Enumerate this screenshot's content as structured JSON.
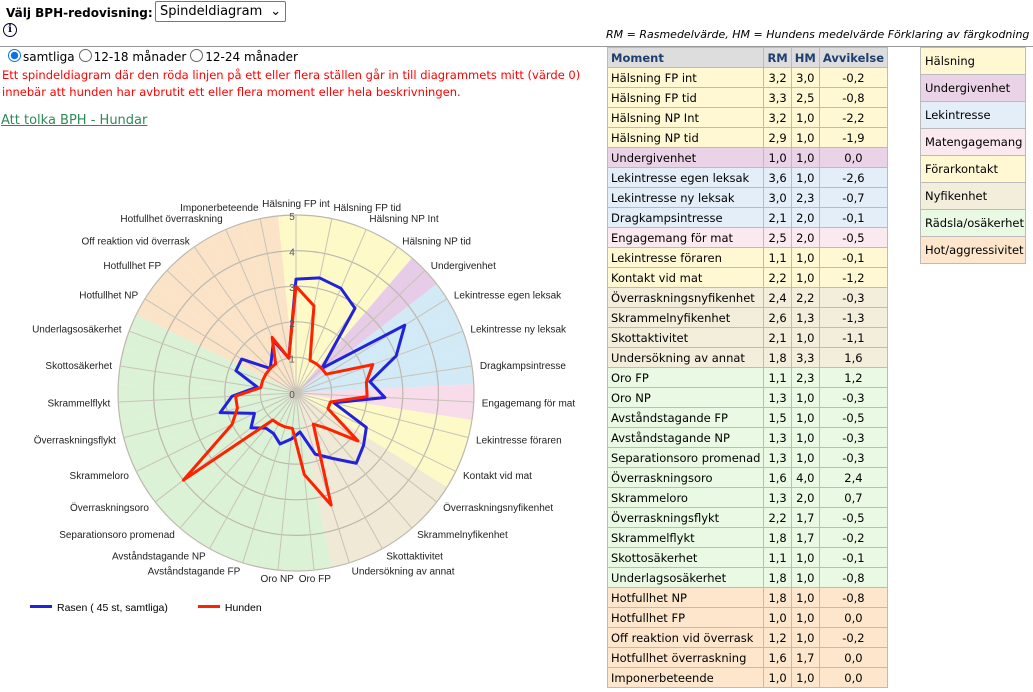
{
  "header": {
    "select_label": "Välj BPH-redovisning:",
    "select_value": "Spindeldiagram",
    "info_icon": "i"
  },
  "filters": [
    {
      "label": "samtliga",
      "checked": true
    },
    {
      "label": "12-18 månader",
      "checked": false
    },
    {
      "label": "12-24 månader",
      "checked": false
    }
  ],
  "warning": "Ett spindeldiagram där den röda linjen på ett eller flera ställen går in till diagrammets mitt (värde 0) innebär att hunden har avbrutit ett eller flera moment eller hela beskrivningen.",
  "link": "Att tolka BPH - Hundar",
  "hint": "RM = Rasmedelvärde,    HM = Hundens medelvärde       Förklaring av färgkodning",
  "table": {
    "headers": [
      "Moment",
      "RM",
      "HM",
      "Avvikelse"
    ],
    "rows": [
      [
        "Hälsning FP int",
        "3,2",
        "3,0",
        "-0,2",
        0
      ],
      [
        "Hälsning FP tid",
        "3,3",
        "2,5",
        "-0,8",
        0
      ],
      [
        "Hälsning NP Int",
        "3,2",
        "1,0",
        "-2,2",
        0
      ],
      [
        "Hälsning NP tid",
        "2,9",
        "1,0",
        "-1,9",
        0
      ],
      [
        "Undergivenhet",
        "1,0",
        "1,0",
        "0,0",
        1
      ],
      [
        "Lekintresse egen leksak",
        "3,6",
        "1,0",
        "-2,6",
        2
      ],
      [
        "Lekintresse ny leksak",
        "3,0",
        "2,3",
        "-0,7",
        2
      ],
      [
        "Dragkampsintresse",
        "2,1",
        "2,0",
        "-0,1",
        2
      ],
      [
        "Engagemang för mat",
        "2,5",
        "2,0",
        "-0,5",
        3
      ],
      [
        "Lekintresse föraren",
        "1,1",
        "1,0",
        "-0,1",
        4
      ],
      [
        "Kontakt vid mat",
        "2,2",
        "1,0",
        "-1,2",
        4
      ],
      [
        "Överraskningsnyfikenhet",
        "2,4",
        "2,2",
        "-0,3",
        5
      ],
      [
        "Skrammelnyfikenhet",
        "2,6",
        "1,3",
        "-1,3",
        5
      ],
      [
        "Skottaktivitet",
        "2,1",
        "1,0",
        "-1,1",
        5
      ],
      [
        "Undersökning av annat",
        "1,8",
        "3,3",
        "1,6",
        5
      ],
      [
        "Oro FP",
        "1,1",
        "2,3",
        "1,2",
        6
      ],
      [
        "Oro NP",
        "1,3",
        "1,0",
        "-0,3",
        6
      ],
      [
        "Avståndstagande FP",
        "1,5",
        "1,0",
        "-0,5",
        6
      ],
      [
        "Avståndstagande NP",
        "1,3",
        "1,0",
        "-0,3",
        6
      ],
      [
        "Separationsoro promenad",
        "1,3",
        "1,0",
        "-0,3",
        6
      ],
      [
        "Överraskningsoro",
        "1,6",
        "4,0",
        "2,4",
        6
      ],
      [
        "Skrammeloro",
        "1,3",
        "2,0",
        "0,7",
        6
      ],
      [
        "Överraskningsflykt",
        "2,2",
        "1,7",
        "-0,5",
        6
      ],
      [
        "Skrammelflykt",
        "1,8",
        "1,7",
        "-0,2",
        6
      ],
      [
        "Skottosäkerhet",
        "1,1",
        "1,0",
        "-0,1",
        6
      ],
      [
        "Underlagsosäkerhet",
        "1,8",
        "1,0",
        "-0,8",
        6
      ],
      [
        "Hotfullhet NP",
        "1,8",
        "1,0",
        "-0,8",
        7
      ],
      [
        "Hotfullhet FP",
        "1,0",
        "1,0",
        "0,0",
        7
      ],
      [
        "Off reaktion vid överrask",
        "1,2",
        "1,0",
        "-0,2",
        7
      ],
      [
        "Hotfullhet överraskning",
        "1,6",
        "1,7",
        "0,0",
        7
      ],
      [
        "Imponerbeteende",
        "1,0",
        "1,0",
        "0,0",
        7
      ]
    ]
  },
  "categories": [
    {
      "label": "Hälsning",
      "row_color": "#fff8d2",
      "chart_color": "#fdfac8"
    },
    {
      "label": "Undergivenhet",
      "row_color": "#ead3e6",
      "chart_color": "#e6cce6"
    },
    {
      "label": "Lekintresse",
      "row_color": "#e3eef8",
      "chart_color": "#d2e9f6"
    },
    {
      "label": "Matengagemang",
      "row_color": "#fbe9f0",
      "chart_color": "#f8dcea"
    },
    {
      "label": "Förarkontakt",
      "row_color": "#fff8d2",
      "chart_color": "#fdfac8"
    },
    {
      "label": "Nyfikenhet",
      "row_color": "#f3eedb",
      "chart_color": "#f0e9d6"
    },
    {
      "label": "Rädsla/osäkerhet",
      "row_color": "#eaf9e3",
      "chart_color": "#dbf2d6"
    },
    {
      "label": "Hot/aggressivitet",
      "row_color": "#fde6cc",
      "chart_color": "#fbe3c8"
    }
  ],
  "chart_data": {
    "type": "radar",
    "categories": [
      "Hälsning FP int",
      "Hälsning FP tid",
      "Hälsning NP Int",
      "Hälsning NP tid",
      "Undergivenhet",
      "Lekintresse egen leksak",
      "Lekintresse ny leksak",
      "Dragkampsintresse",
      "Engagemang för mat",
      "Lekintresse föraren",
      "Kontakt vid mat",
      "Överraskningsnyfikenhet",
      "Skrammelnyfikenhet",
      "Skottaktivitet",
      "Undersökning av annat",
      "Oro FP",
      "Oro NP",
      "Avståndstagande FP",
      "Avståndstagande NP",
      "Separationsoro promenad",
      "Överraskningsoro",
      "Skrammeloro",
      "Överraskningsflykt",
      "Skrammelflykt",
      "Skottosäkerhet",
      "Underlagsosäkerhet",
      "Hotfullhet NP",
      "Hotfullhet FP",
      "Off reaktion vid överrask",
      "Hotfullhet överraskning",
      "Imponerbeteende"
    ],
    "rlim": [
      0,
      5
    ],
    "ticks": [
      "0",
      "1",
      "2",
      "3",
      "4",
      "5"
    ],
    "series": [
      {
        "name": "Rasen ( 45 st, samtliga)",
        "color": "#2222dd",
        "values": [
          3.2,
          3.3,
          3.2,
          2.9,
          1.0,
          3.6,
          3.0,
          2.1,
          2.5,
          1.1,
          2.2,
          2.4,
          2.6,
          2.1,
          1.8,
          1.1,
          1.3,
          1.5,
          1.3,
          1.3,
          1.6,
          1.3,
          2.2,
          1.8,
          1.1,
          1.8,
          1.8,
          1.0,
          1.2,
          1.6,
          1.0
        ]
      },
      {
        "name": "Hunden",
        "color": "#ff2200",
        "values": [
          3.0,
          2.5,
          1.0,
          1.0,
          1.0,
          1.0,
          2.3,
          2.0,
          2.0,
          1.0,
          1.0,
          2.2,
          1.3,
          1.0,
          3.3,
          2.3,
          1.0,
          1.0,
          1.0,
          1.0,
          4.0,
          2.0,
          1.7,
          1.7,
          1.0,
          1.0,
          1.0,
          1.0,
          1.0,
          1.7,
          1.0
        ]
      }
    ],
    "legend": "bottom-left"
  }
}
